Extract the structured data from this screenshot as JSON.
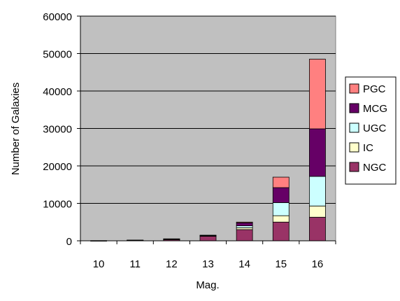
{
  "chart_data": {
    "type": "bar",
    "stacked": true,
    "xlabel": "Mag.",
    "ylabel": "Number of Galaxies",
    "ylim": [
      0,
      60000
    ],
    "yticks": [
      0,
      10000,
      20000,
      30000,
      40000,
      50000,
      60000
    ],
    "categories": [
      "10",
      "11",
      "12",
      "13",
      "14",
      "15",
      "16"
    ],
    "series": [
      {
        "name": "NGC",
        "color": "#993366",
        "values": [
          50,
          150,
          400,
          1200,
          3000,
          5000,
          6300
        ]
      },
      {
        "name": "IC",
        "color": "#FFFFCC",
        "values": [
          0,
          10,
          50,
          150,
          500,
          1700,
          3000
        ]
      },
      {
        "name": "UGC",
        "color": "#CCFFFF",
        "values": [
          0,
          5,
          50,
          100,
          500,
          3500,
          7900
        ]
      },
      {
        "name": "MCG",
        "color": "#660066",
        "values": [
          0,
          5,
          20,
          50,
          800,
          4000,
          12700
        ]
      },
      {
        "name": "PGC",
        "color": "#FF8080",
        "values": [
          0,
          0,
          0,
          0,
          200,
          2800,
          18600
        ]
      }
    ],
    "legend_order": [
      "PGC",
      "MCG",
      "UGC",
      "IC",
      "NGC"
    ],
    "legend_position": "right",
    "grid": true,
    "plot_background": "#C0C0C0"
  }
}
